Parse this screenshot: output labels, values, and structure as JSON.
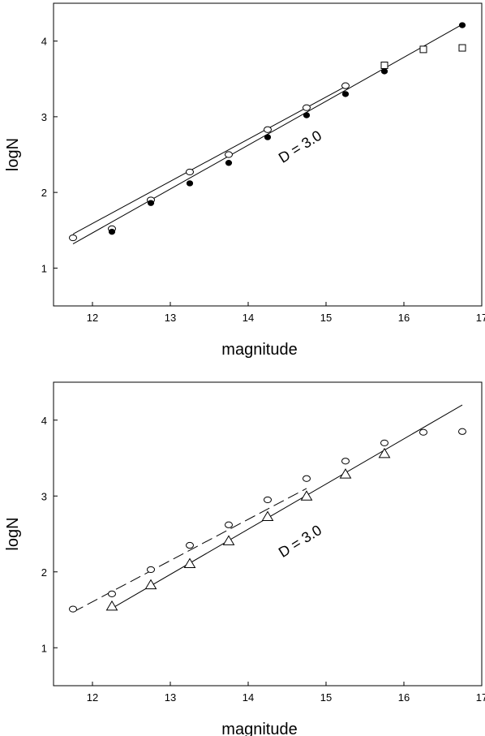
{
  "chart_data": [
    {
      "type": "scatter",
      "xlabel": "magnitude",
      "ylabel": "logN",
      "xlim": [
        11.5,
        17
      ],
      "ylim": [
        0.5,
        4.5
      ],
      "xticks": [
        12,
        13,
        14,
        15,
        16,
        17
      ],
      "yticks": [
        1,
        2,
        3,
        4
      ],
      "grid": false,
      "annotation": {
        "text": "D = 3.0",
        "x": 14.7,
        "y": 2.55,
        "rotation": -32
      },
      "series": [
        {
          "marker": "open-circle",
          "x": [
            11.75,
            12.25,
            12.75,
            13.25,
            13.75,
            14.25,
            14.75,
            15.25
          ],
          "y": [
            1.4,
            1.52,
            1.9,
            2.27,
            2.5,
            2.83,
            3.12,
            3.41
          ]
        },
        {
          "marker": "filled-circle",
          "x": [
            12.25,
            12.75,
            13.25,
            13.75,
            14.25,
            14.75,
            15.25,
            15.75,
            16.75
          ],
          "y": [
            1.48,
            1.86,
            2.12,
            2.39,
            2.73,
            3.02,
            3.3,
            3.6,
            4.21
          ]
        },
        {
          "marker": "open-square",
          "x": [
            15.75,
            16.25,
            16.75
          ],
          "y": [
            3.68,
            3.89,
            3.91
          ]
        }
      ],
      "lines": [
        {
          "style": "solid",
          "x": [
            11.75,
            15.25
          ],
          "y": [
            1.45,
            3.4
          ]
        },
        {
          "style": "solid",
          "x": [
            11.75,
            16.75
          ],
          "y": [
            1.32,
            4.22
          ]
        }
      ]
    },
    {
      "type": "scatter",
      "xlabel": "magnitude",
      "ylabel": "logN",
      "xlim": [
        11.5,
        17
      ],
      "ylim": [
        0.5,
        4.5
      ],
      "xticks": [
        12,
        13,
        14,
        15,
        16,
        17
      ],
      "yticks": [
        1,
        2,
        3,
        4
      ],
      "grid": false,
      "annotation": {
        "text": "D = 3.0",
        "x": 14.7,
        "y": 2.35,
        "rotation": -32
      },
      "series": [
        {
          "marker": "open-circle",
          "x": [
            11.75,
            12.25,
            12.75,
            13.25,
            13.75,
            14.25,
            14.75,
            15.25,
            15.75,
            16.25,
            16.75
          ],
          "y": [
            1.51,
            1.71,
            2.03,
            2.35,
            2.62,
            2.95,
            3.23,
            3.46,
            3.7,
            3.84,
            3.85
          ]
        },
        {
          "marker": "open-triangle",
          "x": [
            12.25,
            12.75,
            13.25,
            13.75,
            14.25,
            14.75,
            15.25,
            15.75
          ],
          "y": [
            1.55,
            1.83,
            2.11,
            2.41,
            2.73,
            3.0,
            3.29,
            3.56
          ]
        }
      ],
      "lines": [
        {
          "style": "dashed",
          "x": [
            11.75,
            14.75
          ],
          "y": [
            1.47,
            3.1
          ]
        },
        {
          "style": "solid",
          "x": [
            12.25,
            16.75
          ],
          "y": [
            1.52,
            4.2
          ]
        }
      ]
    }
  ]
}
